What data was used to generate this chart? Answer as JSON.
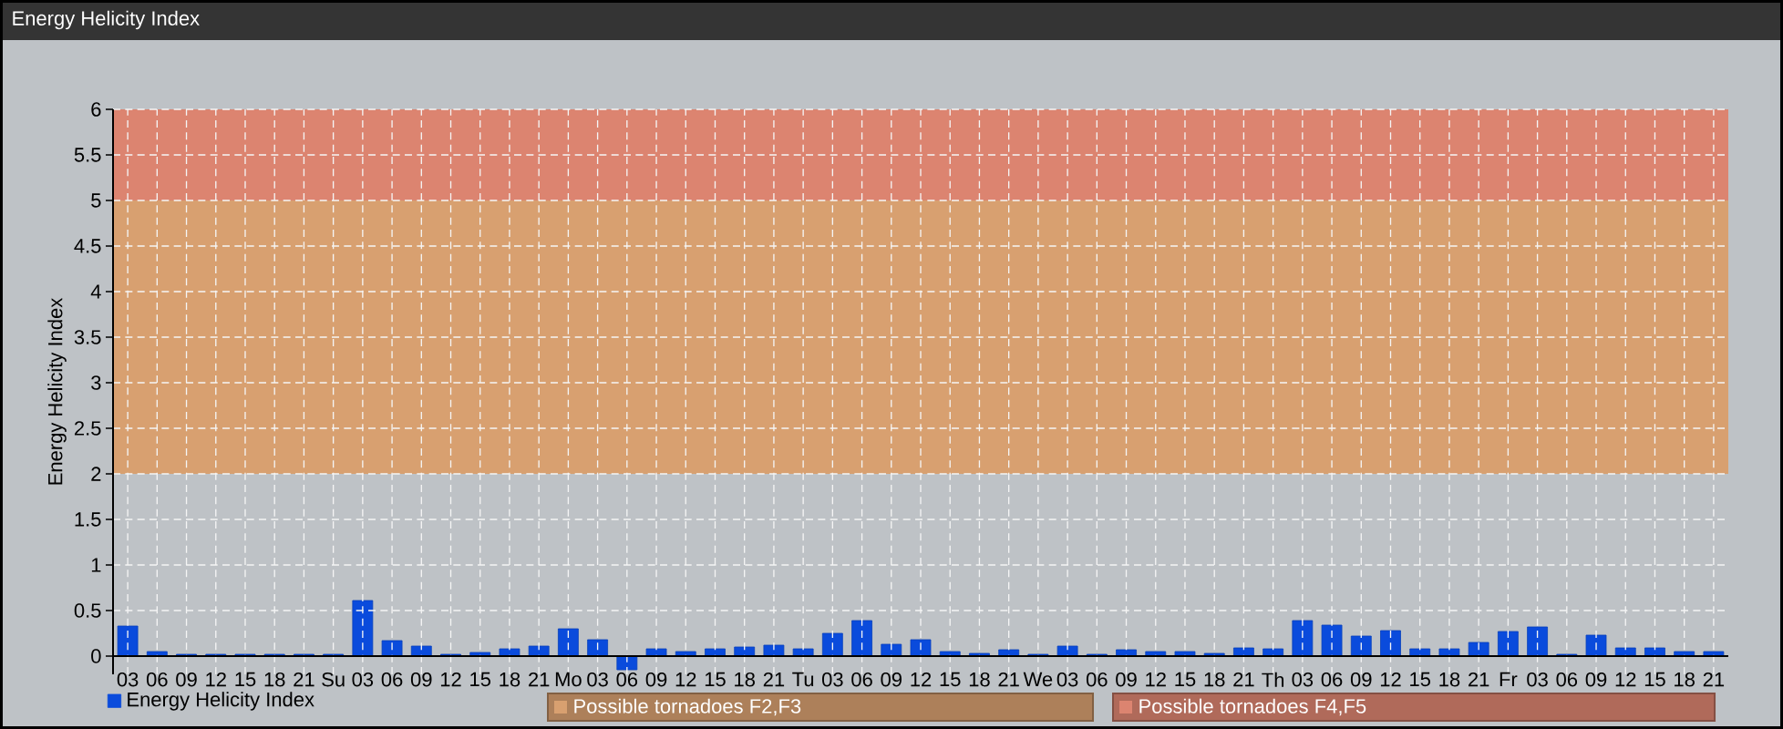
{
  "chart_data": {
    "type": "bar",
    "title": "Energy Helicity Index",
    "ylabel": "Energy Helicity Index",
    "categories": [
      "03",
      "06",
      "09",
      "12",
      "15",
      "18",
      "21",
      "Su",
      "03",
      "06",
      "09",
      "12",
      "15",
      "18",
      "21",
      "Mo",
      "03",
      "06",
      "09",
      "12",
      "15",
      "18",
      "21",
      "Tu",
      "03",
      "06",
      "09",
      "12",
      "15",
      "18",
      "21",
      "We",
      "03",
      "06",
      "09",
      "12",
      "15",
      "18",
      "21",
      "Th",
      "03",
      "06",
      "09",
      "12",
      "15",
      "18",
      "21",
      "Fr",
      "03",
      "06",
      "09",
      "12",
      "15",
      "18",
      "21"
    ],
    "series": [
      {
        "name": "Energy Helicity Index",
        "color": "#0a4bdc",
        "values": [
          0.33,
          0.05,
          0.02,
          0.02,
          0.02,
          0.02,
          0.02,
          0.02,
          0.61,
          0.17,
          0.11,
          0.02,
          0.04,
          0.08,
          0.11,
          0.3,
          0.18,
          -0.15,
          0.08,
          0.05,
          0.08,
          0.1,
          0.12,
          0.08,
          0.25,
          0.39,
          0.13,
          0.18,
          0.05,
          0.03,
          0.07,
          0.02,
          0.11,
          0.02,
          0.07,
          0.05,
          0.05,
          0.03,
          0.09,
          0.08,
          0.39,
          0.34,
          0.22,
          0.28,
          0.08,
          0.08,
          0.15,
          0.27,
          0.32,
          0.02,
          0.23,
          0.09,
          0.09,
          0.05,
          0.05
        ]
      }
    ],
    "ylim": [
      -0.2,
      6
    ],
    "yticks": [
      0,
      0.5,
      1,
      1.5,
      2,
      2.5,
      3,
      3.5,
      4,
      4.5,
      5,
      5.5,
      6
    ],
    "grid": true,
    "legend": "bottom left",
    "bands": [
      {
        "axis": "y",
        "from": 2,
        "to": 5,
        "label": "Possible tornadoes F2,F3",
        "color": "#d8a070"
      },
      {
        "axis": "y",
        "from": 5,
        "to": 6,
        "label": "Possible tornadoes F4,F5",
        "color": "#dc8470"
      }
    ]
  }
}
